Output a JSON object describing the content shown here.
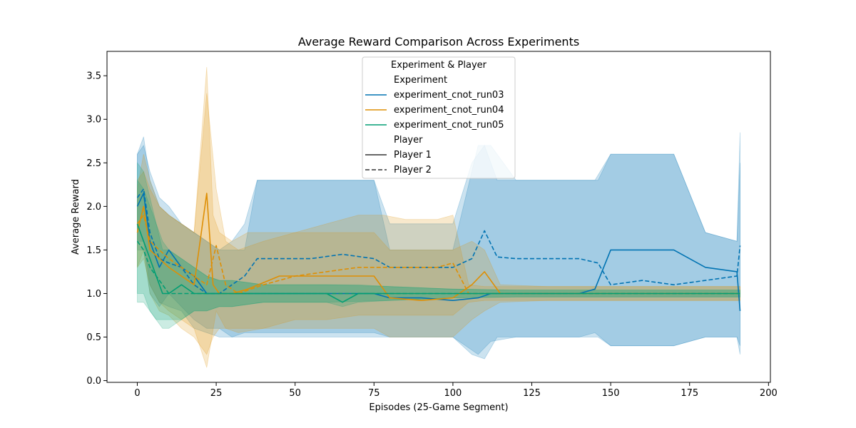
{
  "chart_data": {
    "type": "line",
    "title": "Average Reward Comparison Across Experiments",
    "xlabel": "Episodes (25-Game Segment)",
    "ylabel": "Average Reward",
    "xlim": [
      -9.6,
      200.6
    ],
    "ylim": [
      -0.02,
      3.78
    ],
    "xticks": [
      0,
      25,
      50,
      75,
      100,
      125,
      150,
      175,
      200
    ],
    "yticks": [
      0.0,
      0.5,
      1.0,
      1.5,
      2.0,
      2.5,
      3.0,
      3.5
    ],
    "grid": false,
    "legend": {
      "title": "Experiment & Player",
      "placement": "top-center",
      "sections": [
        {
          "heading": "Experiment",
          "entries": [
            {
              "label": "experiment_cnot_run03",
              "color": "#0173b2",
              "dash": "solid"
            },
            {
              "label": "experiment_cnot_run04",
              "color": "#de8f05",
              "dash": "solid"
            },
            {
              "label": "experiment_cnot_run05",
              "color": "#029e73",
              "dash": "solid"
            }
          ]
        },
        {
          "heading": "Player",
          "entries": [
            {
              "label": "Player 1",
              "color": "#333333",
              "dash": "solid"
            },
            {
              "label": "Player 2",
              "color": "#333333",
              "dash": "dashed"
            }
          ]
        }
      ]
    },
    "series": [
      {
        "name": "experiment_cnot_run03",
        "player": "Player 1",
        "color": "#0173b2",
        "dash": "solid",
        "x": [
          0,
          2,
          4,
          7,
          10,
          14,
          18,
          22,
          26,
          30,
          34,
          38,
          45,
          55,
          65,
          75,
          80,
          90,
          100,
          108,
          112,
          120,
          130,
          140,
          145,
          150,
          160,
          170,
          180,
          190,
          191
        ],
        "y": [
          2.0,
          2.15,
          1.6,
          1.3,
          1.5,
          1.3,
          1.2,
          1.0,
          1.0,
          1.0,
          1.0,
          1.0,
          1.0,
          1.0,
          1.0,
          1.0,
          0.95,
          0.95,
          0.92,
          0.95,
          1.0,
          1.0,
          1.0,
          1.0,
          1.05,
          1.5,
          1.5,
          1.5,
          1.3,
          1.25,
          0.8
        ],
        "lower": [
          1.5,
          1.5,
          1.0,
          0.85,
          1.0,
          0.85,
          0.7,
          0.6,
          0.6,
          0.5,
          0.5,
          0.5,
          0.5,
          0.5,
          0.5,
          0.5,
          0.5,
          0.5,
          0.5,
          0.3,
          0.45,
          0.5,
          0.5,
          0.5,
          0.55,
          0.4,
          0.4,
          0.4,
          0.5,
          0.5,
          0.3
        ],
        "upper": [
          2.6,
          2.7,
          2.4,
          2.1,
          2.0,
          1.8,
          1.7,
          1.6,
          1.5,
          1.5,
          1.5,
          2.3,
          2.3,
          2.3,
          2.3,
          2.3,
          1.5,
          1.5,
          1.5,
          2.7,
          2.7,
          2.3,
          2.3,
          2.3,
          2.3,
          2.6,
          2.6,
          2.6,
          1.7,
          1.6,
          2.85
        ]
      },
      {
        "name": "experiment_cnot_run03",
        "player": "Player 2",
        "color": "#0173b2",
        "dash": "dashed",
        "x": [
          0,
          2,
          4,
          7,
          10,
          14,
          18,
          22,
          26,
          30,
          34,
          38,
          45,
          55,
          65,
          75,
          80,
          90,
          100,
          106,
          110,
          114,
          120,
          130,
          140,
          146,
          150,
          160,
          170,
          180,
          190,
          191
        ],
        "y": [
          2.1,
          2.2,
          1.7,
          1.4,
          1.35,
          1.3,
          1.1,
          1.0,
          1.0,
          1.1,
          1.2,
          1.4,
          1.4,
          1.4,
          1.45,
          1.4,
          1.3,
          1.3,
          1.3,
          1.4,
          1.72,
          1.42,
          1.4,
          1.4,
          1.4,
          1.35,
          1.1,
          1.15,
          1.1,
          1.15,
          1.2,
          1.55
        ],
        "lower": [
          1.6,
          1.6,
          1.1,
          0.9,
          0.85,
          0.8,
          0.6,
          0.55,
          0.5,
          0.5,
          0.55,
          0.55,
          0.55,
          0.55,
          0.55,
          0.55,
          0.5,
          0.5,
          0.5,
          0.3,
          0.25,
          0.5,
          0.5,
          0.5,
          0.5,
          0.5,
          0.4,
          0.4,
          0.4,
          0.5,
          0.5,
          0.4
        ],
        "upper": [
          2.6,
          2.8,
          2.3,
          2.0,
          1.9,
          1.8,
          1.7,
          1.6,
          1.5,
          1.6,
          1.8,
          2.3,
          2.3,
          2.3,
          2.3,
          2.3,
          1.8,
          1.8,
          1.8,
          2.5,
          2.7,
          2.3,
          2.3,
          2.3,
          2.3,
          2.3,
          2.6,
          2.6,
          2.6,
          1.7,
          1.6,
          2.5
        ]
      },
      {
        "name": "experiment_cnot_run04",
        "player": "Player 1",
        "color": "#de8f05",
        "dash": "solid",
        "x": [
          0,
          2,
          4,
          7,
          10,
          14,
          18,
          22,
          24,
          26,
          30,
          35,
          45,
          55,
          65,
          75,
          80,
          90,
          100,
          106,
          110,
          115,
          130,
          145,
          160,
          175,
          191
        ],
        "y": [
          1.7,
          2.0,
          1.5,
          1.4,
          1.3,
          1.2,
          1.1,
          2.15,
          1.1,
          1.0,
          1.0,
          1.05,
          1.2,
          1.2,
          1.2,
          1.2,
          0.95,
          0.92,
          0.95,
          1.1,
          1.25,
          1.0,
          1.0,
          1.0,
          1.0,
          1.0,
          1.0
        ],
        "lower": [
          1.3,
          1.5,
          1.0,
          0.8,
          0.75,
          0.6,
          0.5,
          0.3,
          0.5,
          0.6,
          0.6,
          0.6,
          0.6,
          0.6,
          0.6,
          0.6,
          0.5,
          0.5,
          0.5,
          0.7,
          0.8,
          0.9,
          0.92,
          0.92,
          0.92,
          0.92,
          0.92
        ],
        "upper": [
          2.2,
          2.6,
          2.3,
          2.0,
          1.9,
          1.8,
          1.7,
          3.6,
          1.9,
          1.7,
          1.6,
          1.7,
          1.7,
          1.7,
          1.7,
          1.7,
          1.5,
          1.5,
          1.5,
          1.6,
          1.5,
          1.1,
          1.08,
          1.08,
          1.08,
          1.08,
          1.08
        ]
      },
      {
        "name": "experiment_cnot_run04",
        "player": "Player 2",
        "color": "#de8f05",
        "dash": "dashed",
        "x": [
          0,
          2,
          4,
          7,
          10,
          14,
          18,
          22,
          25,
          28,
          32,
          40,
          50,
          60,
          70,
          78,
          85,
          95,
          100,
          105,
          110,
          120,
          140,
          160,
          191
        ],
        "y": [
          1.8,
          1.9,
          1.6,
          1.5,
          1.4,
          1.3,
          1.2,
          1.1,
          1.55,
          1.1,
          1.0,
          1.1,
          1.2,
          1.25,
          1.3,
          1.3,
          1.3,
          1.3,
          1.35,
          1.0,
          1.0,
          1.0,
          1.0,
          1.0,
          1.0
        ],
        "lower": [
          1.3,
          1.4,
          1.1,
          0.9,
          0.8,
          0.7,
          0.6,
          0.15,
          0.8,
          0.6,
          0.55,
          0.6,
          0.7,
          0.7,
          0.75,
          0.75,
          0.75,
          0.75,
          0.75,
          0.9,
          0.92,
          0.92,
          0.92,
          0.92,
          0.92
        ],
        "upper": [
          2.3,
          2.4,
          2.2,
          2.0,
          1.9,
          1.8,
          1.7,
          3.3,
          2.2,
          1.6,
          1.5,
          1.6,
          1.7,
          1.8,
          1.9,
          1.9,
          1.85,
          1.85,
          1.9,
          1.1,
          1.08,
          1.08,
          1.08,
          1.08,
          1.08
        ]
      },
      {
        "name": "experiment_cnot_run05",
        "player": "Player 1",
        "color": "#029e73",
        "dash": "solid",
        "x": [
          0,
          2,
          4,
          6,
          8,
          10,
          14,
          18,
          22,
          26,
          30,
          40,
          60,
          65,
          70,
          80,
          100,
          120,
          150,
          191
        ],
        "y": [
          1.8,
          1.6,
          1.4,
          1.2,
          1.0,
          1.0,
          1.1,
          1.0,
          1.0,
          1.0,
          1.0,
          1.0,
          1.0,
          0.9,
          1.0,
          1.0,
          1.0,
          1.0,
          1.0,
          1.0
        ],
        "lower": [
          1.0,
          1.0,
          0.8,
          0.7,
          0.6,
          0.6,
          0.7,
          0.8,
          0.8,
          0.85,
          0.85,
          0.9,
          0.9,
          0.85,
          0.9,
          0.92,
          0.95,
          0.96,
          0.96,
          0.96
        ],
        "upper": [
          2.5,
          2.4,
          2.1,
          1.8,
          1.5,
          1.5,
          1.4,
          1.3,
          1.2,
          1.15,
          1.15,
          1.1,
          1.1,
          1.1,
          1.1,
          1.08,
          1.05,
          1.04,
          1.04,
          1.04
        ]
      },
      {
        "name": "experiment_cnot_run05",
        "player": "Player 2",
        "color": "#029e73",
        "dash": "dashed",
        "x": [
          0,
          2,
          4,
          6,
          8,
          10,
          14,
          18,
          22,
          26,
          30,
          40,
          60,
          80,
          100,
          120,
          150,
          191
        ],
        "y": [
          1.6,
          1.5,
          1.3,
          1.2,
          1.1,
          1.0,
          1.0,
          1.0,
          1.0,
          1.0,
          1.0,
          1.0,
          1.0,
          1.0,
          1.0,
          1.0,
          1.0,
          1.0
        ],
        "lower": [
          0.9,
          0.9,
          0.8,
          0.7,
          0.7,
          0.7,
          0.7,
          0.8,
          0.8,
          0.85,
          0.85,
          0.9,
          0.9,
          0.92,
          0.95,
          0.96,
          0.96,
          0.96
        ],
        "upper": [
          2.3,
          2.2,
          2.0,
          1.8,
          1.6,
          1.5,
          1.4,
          1.3,
          1.2,
          1.15,
          1.15,
          1.1,
          1.1,
          1.08,
          1.05,
          1.04,
          1.04,
          1.04
        ]
      }
    ]
  }
}
